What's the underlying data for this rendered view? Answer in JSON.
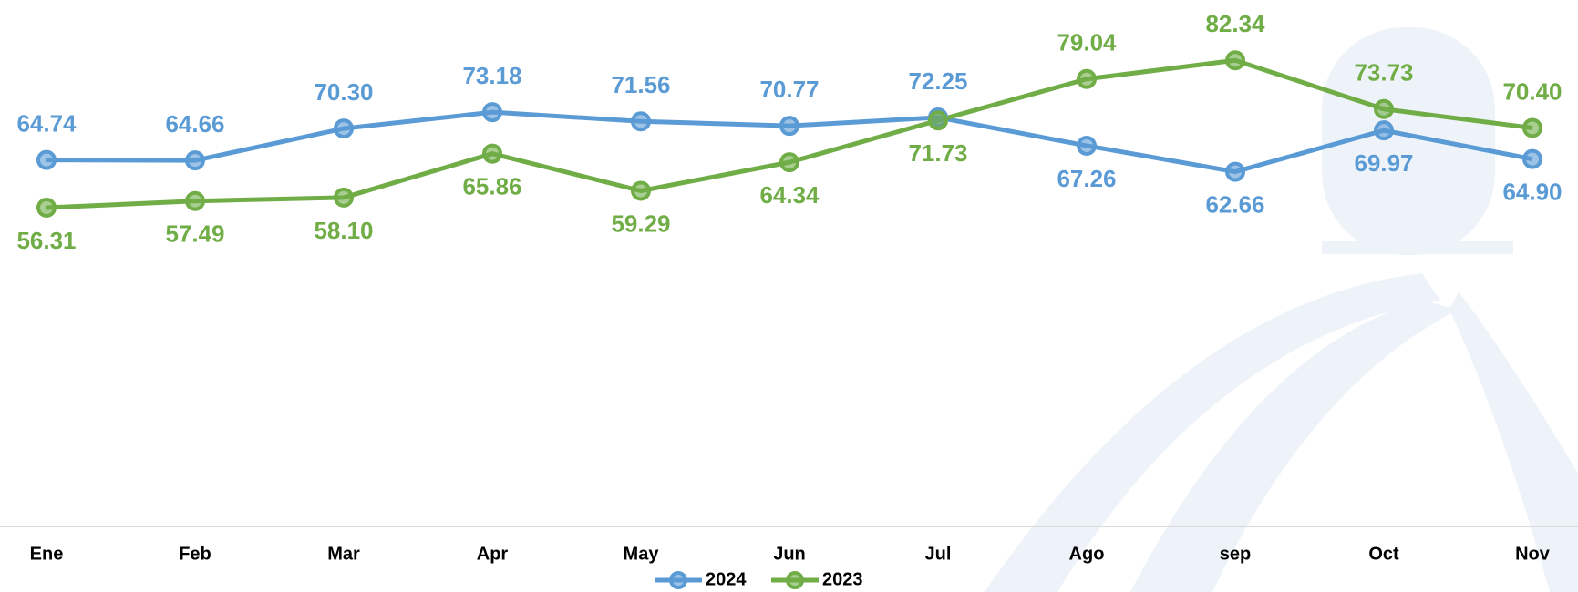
{
  "chart_data": {
    "type": "line",
    "categories": [
      "Ene",
      "Feb",
      "Mar",
      "Apr",
      "May",
      "Jun",
      "Jul",
      "Ago",
      "sep",
      "Oct",
      "Nov"
    ],
    "series": [
      {
        "name": "2024",
        "color": "#5b9bd5",
        "values": [
          64.74,
          64.66,
          70.3,
          73.18,
          71.56,
          70.77,
          72.25,
          67.26,
          62.66,
          69.97,
          64.9
        ],
        "value_labels": [
          "64.74",
          "64.66",
          "70.30",
          "73.18",
          "71.56",
          "70.77",
          "72.25",
          "67.26",
          "62.66",
          "69.97",
          "64.90"
        ]
      },
      {
        "name": "2023",
        "color": "#70ad47",
        "values": [
          56.31,
          57.49,
          58.1,
          65.86,
          59.29,
          64.34,
          71.73,
          79.04,
          82.34,
          73.73,
          70.4
        ],
        "value_labels": [
          "56.31",
          "57.49",
          "58.10",
          "65.86",
          "59.29",
          "64.34",
          "71.73",
          "79.04",
          "82.34",
          "73.73",
          "70.40"
        ]
      }
    ],
    "ylim": [
      0,
      93
    ],
    "grid": false,
    "legend": "bottom"
  }
}
